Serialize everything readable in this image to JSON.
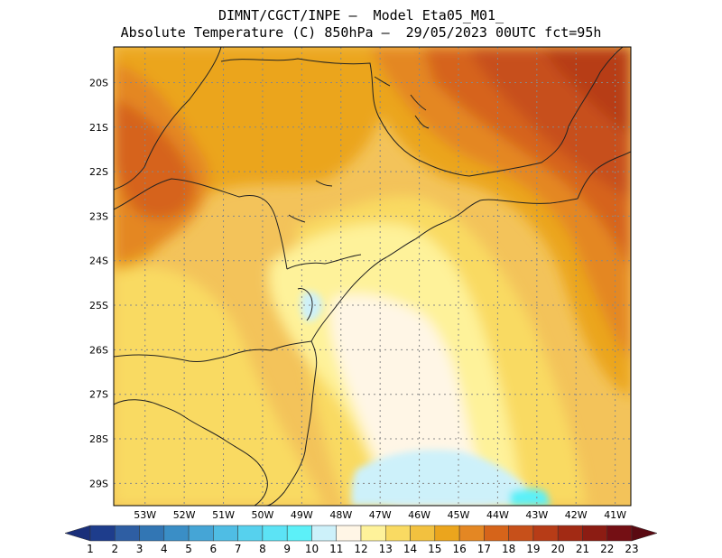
{
  "header": {
    "line1": "DIMNT/CGCT/INPE –  Model Eta05_M01_",
    "line2": "Absolute Temperature (C) 850hPa –  29/05/2023 00UTC fct=95h"
  },
  "map": {
    "lat_labels": [
      "20S",
      "21S",
      "22S",
      "23S",
      "24S",
      "25S",
      "26S",
      "27S",
      "28S",
      "29S"
    ],
    "lon_labels": [
      "53W",
      "52W",
      "51W",
      "50W",
      "49W",
      "48W",
      "47W",
      "46W",
      "45W",
      "44W",
      "43W",
      "42W",
      "41W"
    ],
    "lat_range": [
      -29.5,
      -19.2
    ],
    "lon_range": [
      -53.8,
      -40.6
    ],
    "colors": {
      "bg": "#f3c35a",
      "c10": "#5cf0f8",
      "c11": "#cdf1fa",
      "c12": "#fff6e6",
      "c13": "#fef29a",
      "c14": "#f9da62",
      "c15": "#f2c13f",
      "c16": "#eba51d",
      "c17": "#e48723",
      "c18": "#d6641a",
      "c19": "#c7501a",
      "c20": "#b73c17"
    }
  },
  "colorbar": {
    "labels": [
      "1",
      "2",
      "3",
      "4",
      "5",
      "6",
      "7",
      "8",
      "9",
      "10",
      "11",
      "12",
      "13",
      "14",
      "15",
      "16",
      "17",
      "18",
      "19",
      "20",
      "21",
      "22",
      "23"
    ],
    "colors": [
      "#1e3d8c",
      "#2e5ea3",
      "#3276b4",
      "#3a8ec6",
      "#45a5d6",
      "#4fbde4",
      "#56d1ee",
      "#5ce3f5",
      "#5cf0f8",
      "#cdf1fa",
      "#fff6e6",
      "#fef29a",
      "#f9da62",
      "#f2c13f",
      "#eba51d",
      "#e48723",
      "#d6641a",
      "#c7501a",
      "#b73c17",
      "#a22a14",
      "#8c1c13",
      "#740f14"
    ],
    "low_color": "#1a2f7a",
    "high_color": "#5a0a12"
  }
}
